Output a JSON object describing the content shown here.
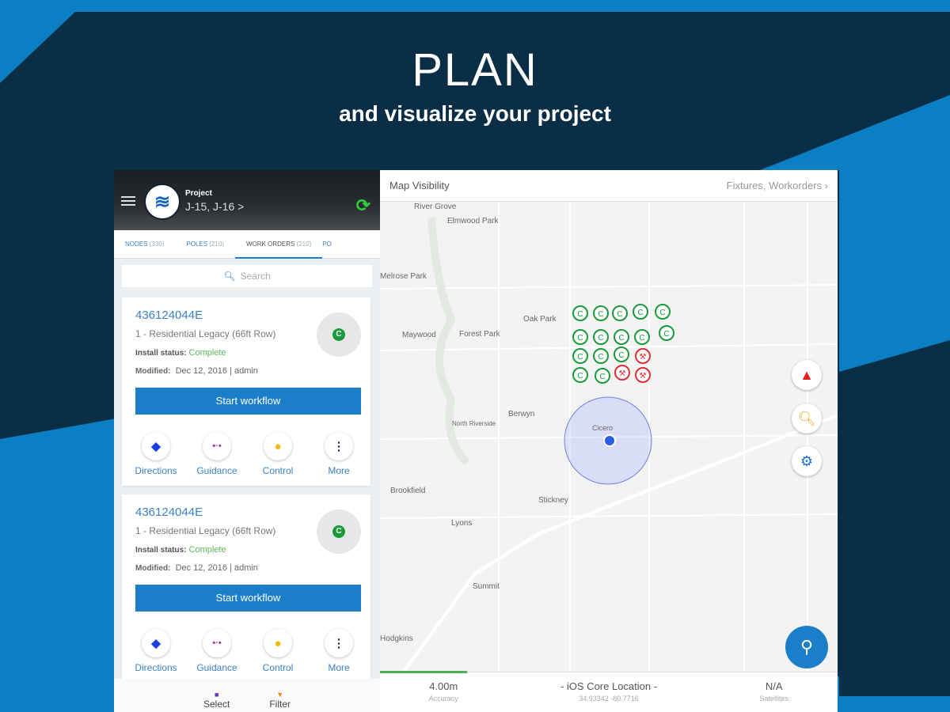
{
  "hero": {
    "title": "PLAN",
    "subtitle": "and visualize your project"
  },
  "colors": {
    "brand_blue": "#0a7fc4",
    "navy": "#0b2e47",
    "accent": "#1a7fc8",
    "complete": "#1a9a3a",
    "issue": "#e03030"
  },
  "header": {
    "menu_icon": "hamburger-icon",
    "project_label": "Project",
    "project_value": "J-15, J-16 >",
    "sync_icon": "sync-icon"
  },
  "tabs": [
    {
      "label": "NODES",
      "count": "(330)"
    },
    {
      "label": "POLES",
      "count": "(210)"
    },
    {
      "label": "WORK ORDERS",
      "count": "(210)",
      "active": true
    },
    {
      "label": "PO",
      "count": ""
    }
  ],
  "search": {
    "placeholder": "Search"
  },
  "cards": [
    {
      "id": "436124044E",
      "description": "1 - Residential Legacy (66ft Row)",
      "status_label": "Install status:",
      "status": "Complete",
      "modified_label": "Modified:",
      "modified": "Dec 12, 2016 | admin",
      "button": "Start workflow",
      "thumb_marker": "C"
    },
    {
      "id": "436124044E",
      "description": "1 - Residential Legacy (66ft Row)",
      "status_label": "Install status:",
      "status": "Complete",
      "modified_label": "Modified:",
      "modified": "Dec 12, 2016 | admin",
      "button": "Start workflow",
      "thumb_marker": "C"
    }
  ],
  "actions": [
    {
      "label": "Directions",
      "icon": "directions-icon"
    },
    {
      "label": "Guidance",
      "icon": "guidance-icon"
    },
    {
      "label": "Control",
      "icon": "bulb-icon"
    },
    {
      "label": "More",
      "icon": "more-icon"
    }
  ],
  "bottom_bar": [
    {
      "label": "Select"
    },
    {
      "label": "Filter"
    }
  ],
  "map": {
    "visibility_label": "Map Visibility",
    "visibility_value": "Fixtures, Workorders",
    "marker_letter": "C",
    "places": [
      "River Grove",
      "Elmwood Park",
      "Melrose Park",
      "Oak Park",
      "Maywood",
      "Forest Park",
      "Berwyn",
      "North Riverside",
      "Cicero",
      "Brookfield",
      "Stickney",
      "Lyons",
      "Summit",
      "Hodgkins"
    ]
  },
  "status": {
    "accuracy": "4.00m",
    "accuracy_label": "Accuracy",
    "source": "- iOS Core Location -",
    "coords": "34.93342 -80.7716",
    "satellites": "N/A",
    "satellites_label": "Satellites",
    "progress": 0.19
  }
}
